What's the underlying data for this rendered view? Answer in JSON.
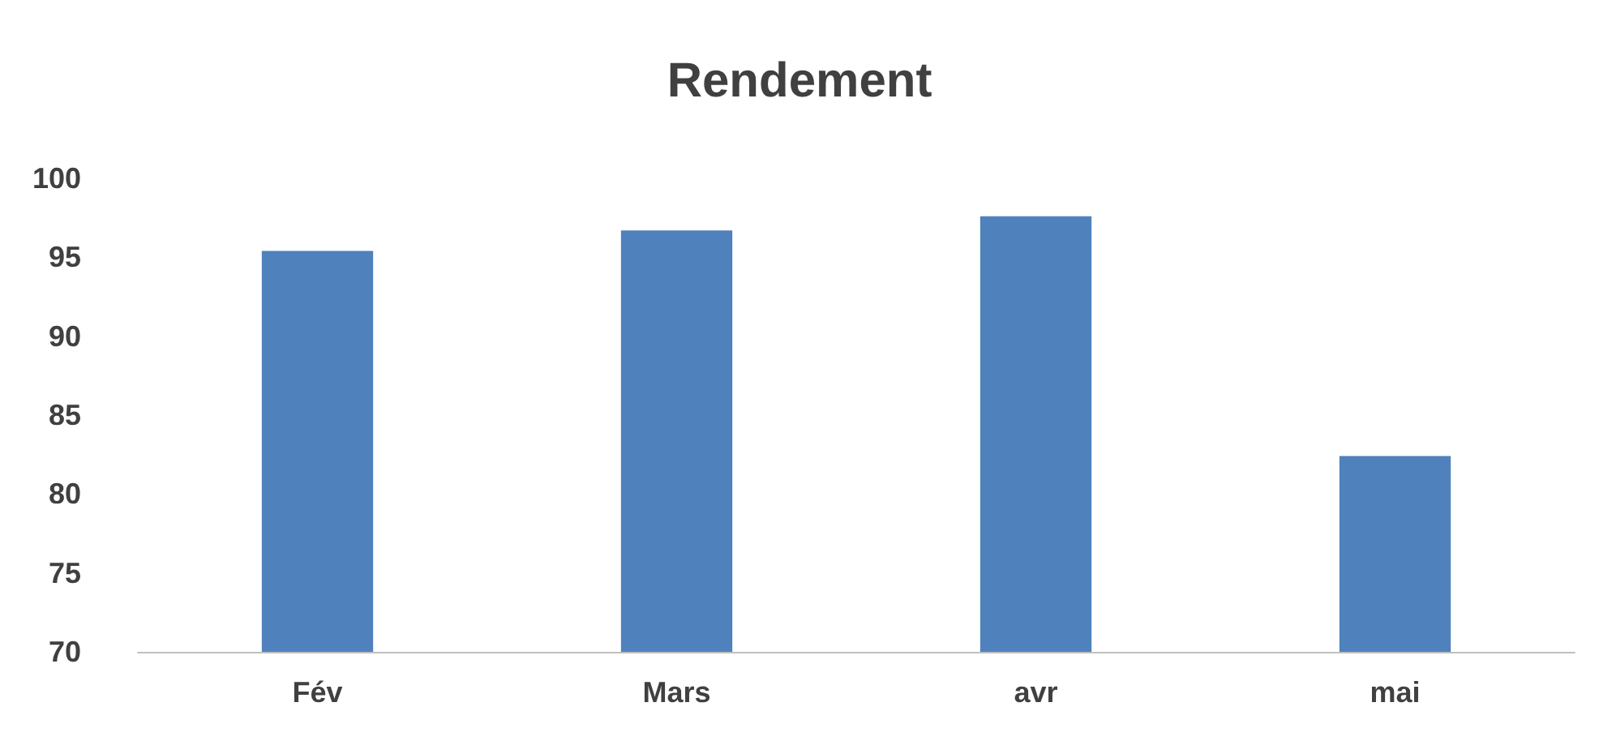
{
  "chart_data": {
    "type": "bar",
    "title": "Rendement",
    "categories": [
      "Fév",
      "Mars",
      "avr",
      "mai"
    ],
    "values": [
      95.4,
      96.7,
      97.6,
      82.4
    ],
    "color": "#4f81bd",
    "ylim": [
      70,
      100
    ],
    "yticks": [
      70,
      75,
      80,
      85,
      90,
      95,
      100
    ],
    "grid": false
  }
}
